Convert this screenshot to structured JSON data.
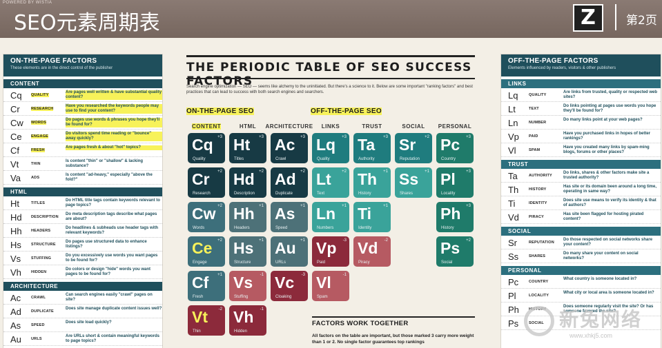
{
  "banner": {
    "powered": "POWERED BY WISTIA",
    "title": "SEO元素周期表",
    "logo": "Z",
    "page": "第2页"
  },
  "left": {
    "header": "ON-THE-PAGE FACTORS",
    "sub": "These elements are in the direct control of the publisher",
    "sections": [
      {
        "name": "CONTENT",
        "rows": [
          {
            "sym": "Cq",
            "name": "QUALITY",
            "desc": "Are pages well written & have substantial quality content?",
            "hl": true
          },
          {
            "sym": "Cr",
            "name": "RESEARCH",
            "desc": "Have you researched the keywords people may use to find your content?",
            "hl": true
          },
          {
            "sym": "Cw",
            "name": "WORDS",
            "desc": "Do pages use words & phrases you hope they'll be found for?",
            "hl": true
          },
          {
            "sym": "Ce",
            "name": "ENGAGE",
            "desc": "Do visitors spend time reading or \"bounce\" away quickly?",
            "hl": true
          },
          {
            "sym": "Cf",
            "name": "FRESH",
            "desc": "Are pages fresh & about \"hot\" topics?",
            "hl": true
          },
          {
            "sym": "Vt",
            "name": "THIN",
            "desc": "Is content \"thin\" or \"shallow\" & lacking substance?",
            "hl": false
          },
          {
            "sym": "Va",
            "name": "ADS",
            "desc": "Is content \"ad-heavy,\" especially \"above the fold?\"",
            "hl": false
          }
        ]
      },
      {
        "name": "HTML",
        "rows": [
          {
            "sym": "Ht",
            "name": "TITLES",
            "desc": "Do HTML title tags contain keywords relevant to page topics?",
            "hl": false
          },
          {
            "sym": "Hd",
            "name": "DESCRIPTION",
            "desc": "Do meta description tags describe what pages are about?",
            "hl": false
          },
          {
            "sym": "Hh",
            "name": "HEADERS",
            "desc": "Do headlines & subheads use header tags with relevant keywords?",
            "hl": false
          },
          {
            "sym": "Hs",
            "name": "STRUCTURE",
            "desc": "Do pages use structured data to enhance listings?",
            "hl": false
          },
          {
            "sym": "Vs",
            "name": "STUFFING",
            "desc": "Do you excessively use words you want pages to be found for?",
            "hl": false
          },
          {
            "sym": "Vh",
            "name": "HIDDEN",
            "desc": "Do colors or design \"hide\" words you want pages to be found for?",
            "hl": false
          }
        ]
      },
      {
        "name": "ARCHITECTURE",
        "rows": [
          {
            "sym": "Ac",
            "name": "CRAWL",
            "desc": "Can search engines easily \"crawl\" pages on site?",
            "hl": false
          },
          {
            "sym": "Ad",
            "name": "DUPLICATE",
            "desc": "Does site manage duplicate content issues well?",
            "hl": false
          },
          {
            "sym": "As",
            "name": "SPEED",
            "desc": "Does site load quickly?",
            "hl": false
          },
          {
            "sym": "Au",
            "name": "URLS",
            "desc": "Are URLs short & contain meaningful keywords to page topics?",
            "hl": false
          }
        ]
      }
    ]
  },
  "right": {
    "header": "OFF-THE-PAGE FACTORS",
    "sub": "Elements influenced by readers, visitors & other publishers",
    "sections": [
      {
        "name": "LINKS",
        "rows": [
          {
            "sym": "Lq",
            "name": "QUALITY",
            "desc": "Are links from trusted, quality or respected web sites?"
          },
          {
            "sym": "Lt",
            "name": "TEXT",
            "desc": "Do links pointing at pages use words you hope they'll be found for?"
          },
          {
            "sym": "Ln",
            "name": "NUMBER",
            "desc": "Do many links point at your web pages?"
          },
          {
            "sym": "Vp",
            "name": "PAID",
            "desc": "Have you purchased links in hopes of better rankings?"
          },
          {
            "sym": "Vl",
            "name": "SPAM",
            "desc": "Have you created many links by spam-ming blogs, forums or other places?"
          }
        ]
      },
      {
        "name": "TRUST",
        "rows": [
          {
            "sym": "Ta",
            "name": "AUTHORITY",
            "desc": "Do links, shares & other factors make site a trusted authority?"
          },
          {
            "sym": "Th",
            "name": "HISTORY",
            "desc": "Has site or its domain been around a long time, operating in same way?"
          },
          {
            "sym": "Ti",
            "name": "IDENTITY",
            "desc": "Does site use means to verify its identity & that of authors?"
          },
          {
            "sym": "Vd",
            "name": "PIRACY",
            "desc": "Has site been flagged for hosting pirated content?"
          }
        ]
      },
      {
        "name": "SOCIAL",
        "rows": [
          {
            "sym": "Sr",
            "name": "REPUTATION",
            "desc": "Do those respected on social networks share your content?"
          },
          {
            "sym": "Ss",
            "name": "SHARES",
            "desc": "Do many share your content on social networks?"
          }
        ]
      },
      {
        "name": "PERSONAL",
        "rows": [
          {
            "sym": "Pc",
            "name": "COUNTRY",
            "desc": "What country is someone located in?"
          },
          {
            "sym": "Pl",
            "name": "LOCALITY",
            "desc": "What city or local area is someone located in?"
          },
          {
            "sym": "Ph",
            "name": "HISTORY",
            "desc": "Does someone regularly visit the site? Or has someone favored the site?"
          },
          {
            "sym": "Ps",
            "name": "SOCIAL",
            "desc": ""
          }
        ]
      }
    ]
  },
  "center": {
    "title": "THE PERIODIC TABLE OF SEO SUCCESS FACTORS",
    "intro": "Search engine optimization — SEO — seems like alchemy to the uninitiated. But there's a science to it. Below are some important \"ranking factors\" and best practices that can lead to success with both search engines and searchers.",
    "on_label": "ON-THE-PAGE SEO",
    "off_label": "OFF-THE-PAGE SEO",
    "columns": [
      "CONTENT",
      "HTML",
      "ARCHITECTURE",
      "LINKS",
      "TRUST",
      "SOCIAL",
      "PERSONAL"
    ],
    "tiles": [
      {
        "col": 0,
        "row": 0,
        "sym": "Cq",
        "word": "Quality",
        "num": "+3",
        "c": "t-dark"
      },
      {
        "col": 0,
        "row": 1,
        "sym": "Cr",
        "word": "Research",
        "num": "+2",
        "c": "t-dark"
      },
      {
        "col": 0,
        "row": 2,
        "sym": "Cw",
        "word": "Words",
        "num": "+2",
        "c": "t-mid"
      },
      {
        "col": 0,
        "row": 3,
        "sym": "Ce",
        "word": "Engage",
        "num": "+2",
        "c": "t-mid",
        "hl": true
      },
      {
        "col": 0,
        "row": 4,
        "sym": "Cf",
        "word": "Fresh",
        "num": "+1",
        "c": "t-mid"
      },
      {
        "col": 0,
        "row": 5,
        "sym": "Vt",
        "word": "Thin",
        "num": "-2",
        "c": "t-red",
        "hl": true
      },
      {
        "col": 1,
        "row": 0,
        "sym": "Ht",
        "word": "Titles",
        "num": "+3",
        "c": "t-dark"
      },
      {
        "col": 1,
        "row": 1,
        "sym": "Hd",
        "word": "Description",
        "num": "+2",
        "c": "t-dark"
      },
      {
        "col": 1,
        "row": 2,
        "sym": "Hh",
        "word": "Headers",
        "num": "+1",
        "c": "t-grey"
      },
      {
        "col": 1,
        "row": 3,
        "sym": "Hs",
        "word": "Structure",
        "num": "+1",
        "c": "t-grey"
      },
      {
        "col": 1,
        "row": 4,
        "sym": "Vs",
        "word": "Stuffing",
        "num": "-1",
        "c": "t-rose"
      },
      {
        "col": 1,
        "row": 5,
        "sym": "Vh",
        "word": "Hidden",
        "num": "-1",
        "c": "t-red"
      },
      {
        "col": 2,
        "row": 0,
        "sym": "Ac",
        "word": "Crawl",
        "num": "+3",
        "c": "t-dark"
      },
      {
        "col": 2,
        "row": 1,
        "sym": "Ad",
        "word": "Duplicate",
        "num": "+2",
        "c": "t-dark"
      },
      {
        "col": 2,
        "row": 2,
        "sym": "As",
        "word": "Speed",
        "num": "+1",
        "c": "t-grey"
      },
      {
        "col": 2,
        "row": 3,
        "sym": "Au",
        "word": "URLs",
        "num": "+1",
        "c": "t-grey"
      },
      {
        "col": 2,
        "row": 4,
        "sym": "Vc",
        "word": "Cloaking",
        "num": "-3",
        "c": "t-red"
      },
      {
        "col": 3,
        "row": 0,
        "sym": "Lq",
        "word": "Quality",
        "num": "+3",
        "c": "t-teal"
      },
      {
        "col": 3,
        "row": 1,
        "sym": "Lt",
        "word": "Text",
        "num": "+2",
        "c": "t-lt"
      },
      {
        "col": 3,
        "row": 2,
        "sym": "Ln",
        "word": "Numbers",
        "num": "+1",
        "c": "t-lt"
      },
      {
        "col": 3,
        "row": 3,
        "sym": "Vp",
        "word": "Paid",
        "num": "-3",
        "c": "t-red"
      },
      {
        "col": 3,
        "row": 4,
        "sym": "Vl",
        "word": "Spam",
        "num": "-1",
        "c": "t-rose"
      },
      {
        "col": 4,
        "row": 0,
        "sym": "Ta",
        "word": "Authority",
        "num": "+3",
        "c": "t-teal"
      },
      {
        "col": 4,
        "row": 1,
        "sym": "Th",
        "word": "History",
        "num": "+1",
        "c": "t-lt"
      },
      {
        "col": 4,
        "row": 2,
        "sym": "Ti",
        "word": "Identity",
        "num": "+1",
        "c": "t-lt"
      },
      {
        "col": 4,
        "row": 3,
        "sym": "Vd",
        "word": "Piracy",
        "num": "-2",
        "c": "t-rose"
      },
      {
        "col": 5,
        "row": 0,
        "sym": "Sr",
        "word": "Reputation",
        "num": "+2",
        "c": "t-teal"
      },
      {
        "col": 5,
        "row": 1,
        "sym": "Ss",
        "word": "Shares",
        "num": "+1",
        "c": "t-lt"
      },
      {
        "col": 6,
        "row": 0,
        "sym": "Pc",
        "word": "Country",
        "num": "+3",
        "c": "t-green"
      },
      {
        "col": 6,
        "row": 1,
        "sym": "Pl",
        "word": "Locality",
        "num": "+3",
        "c": "t-green"
      },
      {
        "col": 6,
        "row": 2,
        "sym": "Ph",
        "word": "History",
        "num": "+3",
        "c": "t-green"
      },
      {
        "col": 6,
        "row": 3,
        "sym": "Ps",
        "word": "Social",
        "num": "+2",
        "c": "t-green"
      }
    ],
    "factors_title": "FACTORS WORK TOGETHER",
    "factors_text": "All factors on the table are important, but those marked 3 carry more weight than 1 or 2. No single factor guarantees top rankings"
  },
  "watermark": {
    "text": "新兔网络",
    "url": "www.xhkj5.com"
  },
  "colors": {
    "banner": "#7d6d66",
    "panel_header": "#1f4f5c",
    "highlight": "#f7f25a",
    "negative": "#8c2a3b"
  }
}
